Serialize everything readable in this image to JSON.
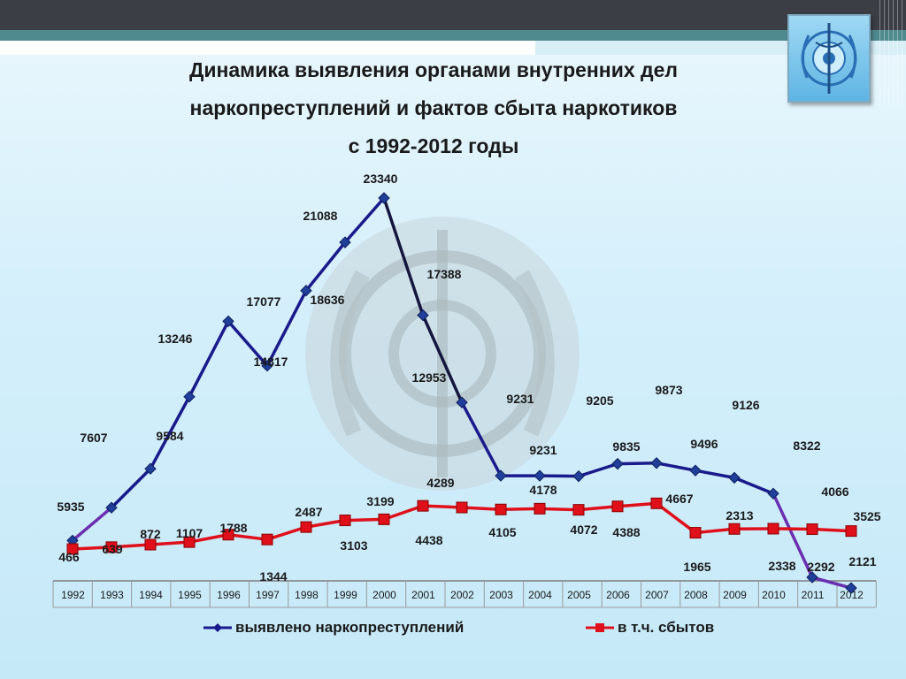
{
  "slide": {
    "title_lines": [
      "Динамика выявления органами внутренних дел",
      "наркопреступлений и фактов сбыта наркотиков",
      "с 1992-2012 годы"
    ]
  },
  "colors": {
    "series_1": "#1a1a8c",
    "series_2": "#e0101a",
    "background": "#d4effb"
  },
  "chart_data": {
    "type": "line",
    "title": "",
    "xlabel": "",
    "ylabel": "",
    "categories": [
      "1992",
      "1993",
      "1994",
      "1995",
      "1996",
      "1997",
      "1998",
      "1999",
      "2000",
      "2001",
      "2002",
      "2003",
      "2004",
      "2005",
      "2006",
      "2007",
      "2008",
      "2009",
      "2010",
      "2011",
      "2012"
    ],
    "ylim": [
      0,
      25000
    ],
    "grid": false,
    "legend_position": "bottom",
    "series": [
      {
        "name": "выявлено наркопреступлений",
        "marker": "diamond",
        "values": [
          5935,
          7607,
          9584,
          13246,
          17077,
          14817,
          18636,
          21088,
          23340,
          17388,
          12953,
          9231,
          9231,
          9205,
          9835,
          9873,
          9496,
          9126,
          8322,
          4066,
          3525
        ]
      },
      {
        "name": "в т.ч. сбытов",
        "marker": "square",
        "values": [
          466,
          639,
          872,
          1107,
          1788,
          1344,
          2487,
          3103,
          3199,
          4438,
          4289,
          4105,
          4178,
          4072,
          4388,
          4667,
          1965,
          2313,
          2338,
          2292,
          2121
        ]
      }
    ]
  }
}
